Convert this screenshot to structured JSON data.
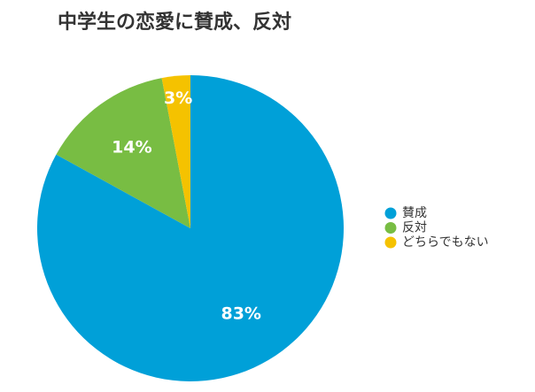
{
  "chart_data": {
    "type": "pie",
    "title": "中学生の恋愛に賛成、反対",
    "categories": [
      "賛成",
      "反対",
      "どちらでもない"
    ],
    "values": [
      83,
      14,
      3
    ],
    "value_labels": [
      "83%",
      "14%",
      "3%"
    ],
    "colors": [
      "#00a0d8",
      "#78bd43",
      "#f5c200"
    ],
    "legend": "right"
  }
}
